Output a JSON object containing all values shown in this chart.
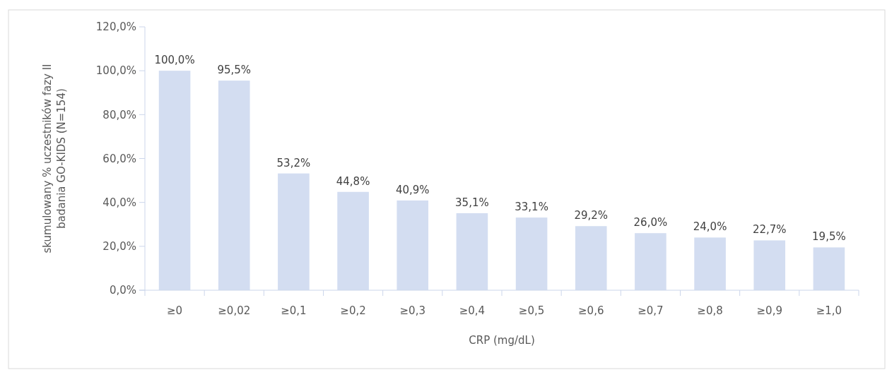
{
  "chart_data": {
    "type": "bar",
    "xlabel": "CRP (mg/dL)",
    "ylabel": "skumulowany  % uczestników fazy II\nbadania GO-KIDS (N=154)",
    "categories": [
      "≥0",
      "≥0,02",
      "≥0,1",
      "≥0,2",
      "≥0,3",
      "≥0,4",
      "≥0,5",
      "≥0,6",
      "≥0,7",
      "≥0,8",
      "≥0,9",
      "≥1,0"
    ],
    "values": [
      100.0,
      95.5,
      53.2,
      44.8,
      40.9,
      35.1,
      33.1,
      29.2,
      26.0,
      24.0,
      22.7,
      19.5
    ],
    "value_labels": [
      "100,0%",
      "95,5%",
      "53,2%",
      "44,8%",
      "40,9%",
      "35,1%",
      "33,1%",
      "29,2%",
      "26,0%",
      "24,0%",
      "22,7%",
      "19,5%"
    ],
    "color": "#d3ddf1",
    "ylim": [
      0,
      120
    ],
    "yticks": [
      {
        "value": 0,
        "label": "0,0%"
      },
      {
        "value": 20,
        "label": "20,0%"
      },
      {
        "value": 40,
        "label": "40,0%"
      },
      {
        "value": 60,
        "label": "60,0%"
      },
      {
        "value": 80,
        "label": "80,0%"
      },
      {
        "value": 100,
        "label": "100,0%"
      },
      {
        "value": 120,
        "label": "120,0%"
      }
    ],
    "grid": false
  }
}
